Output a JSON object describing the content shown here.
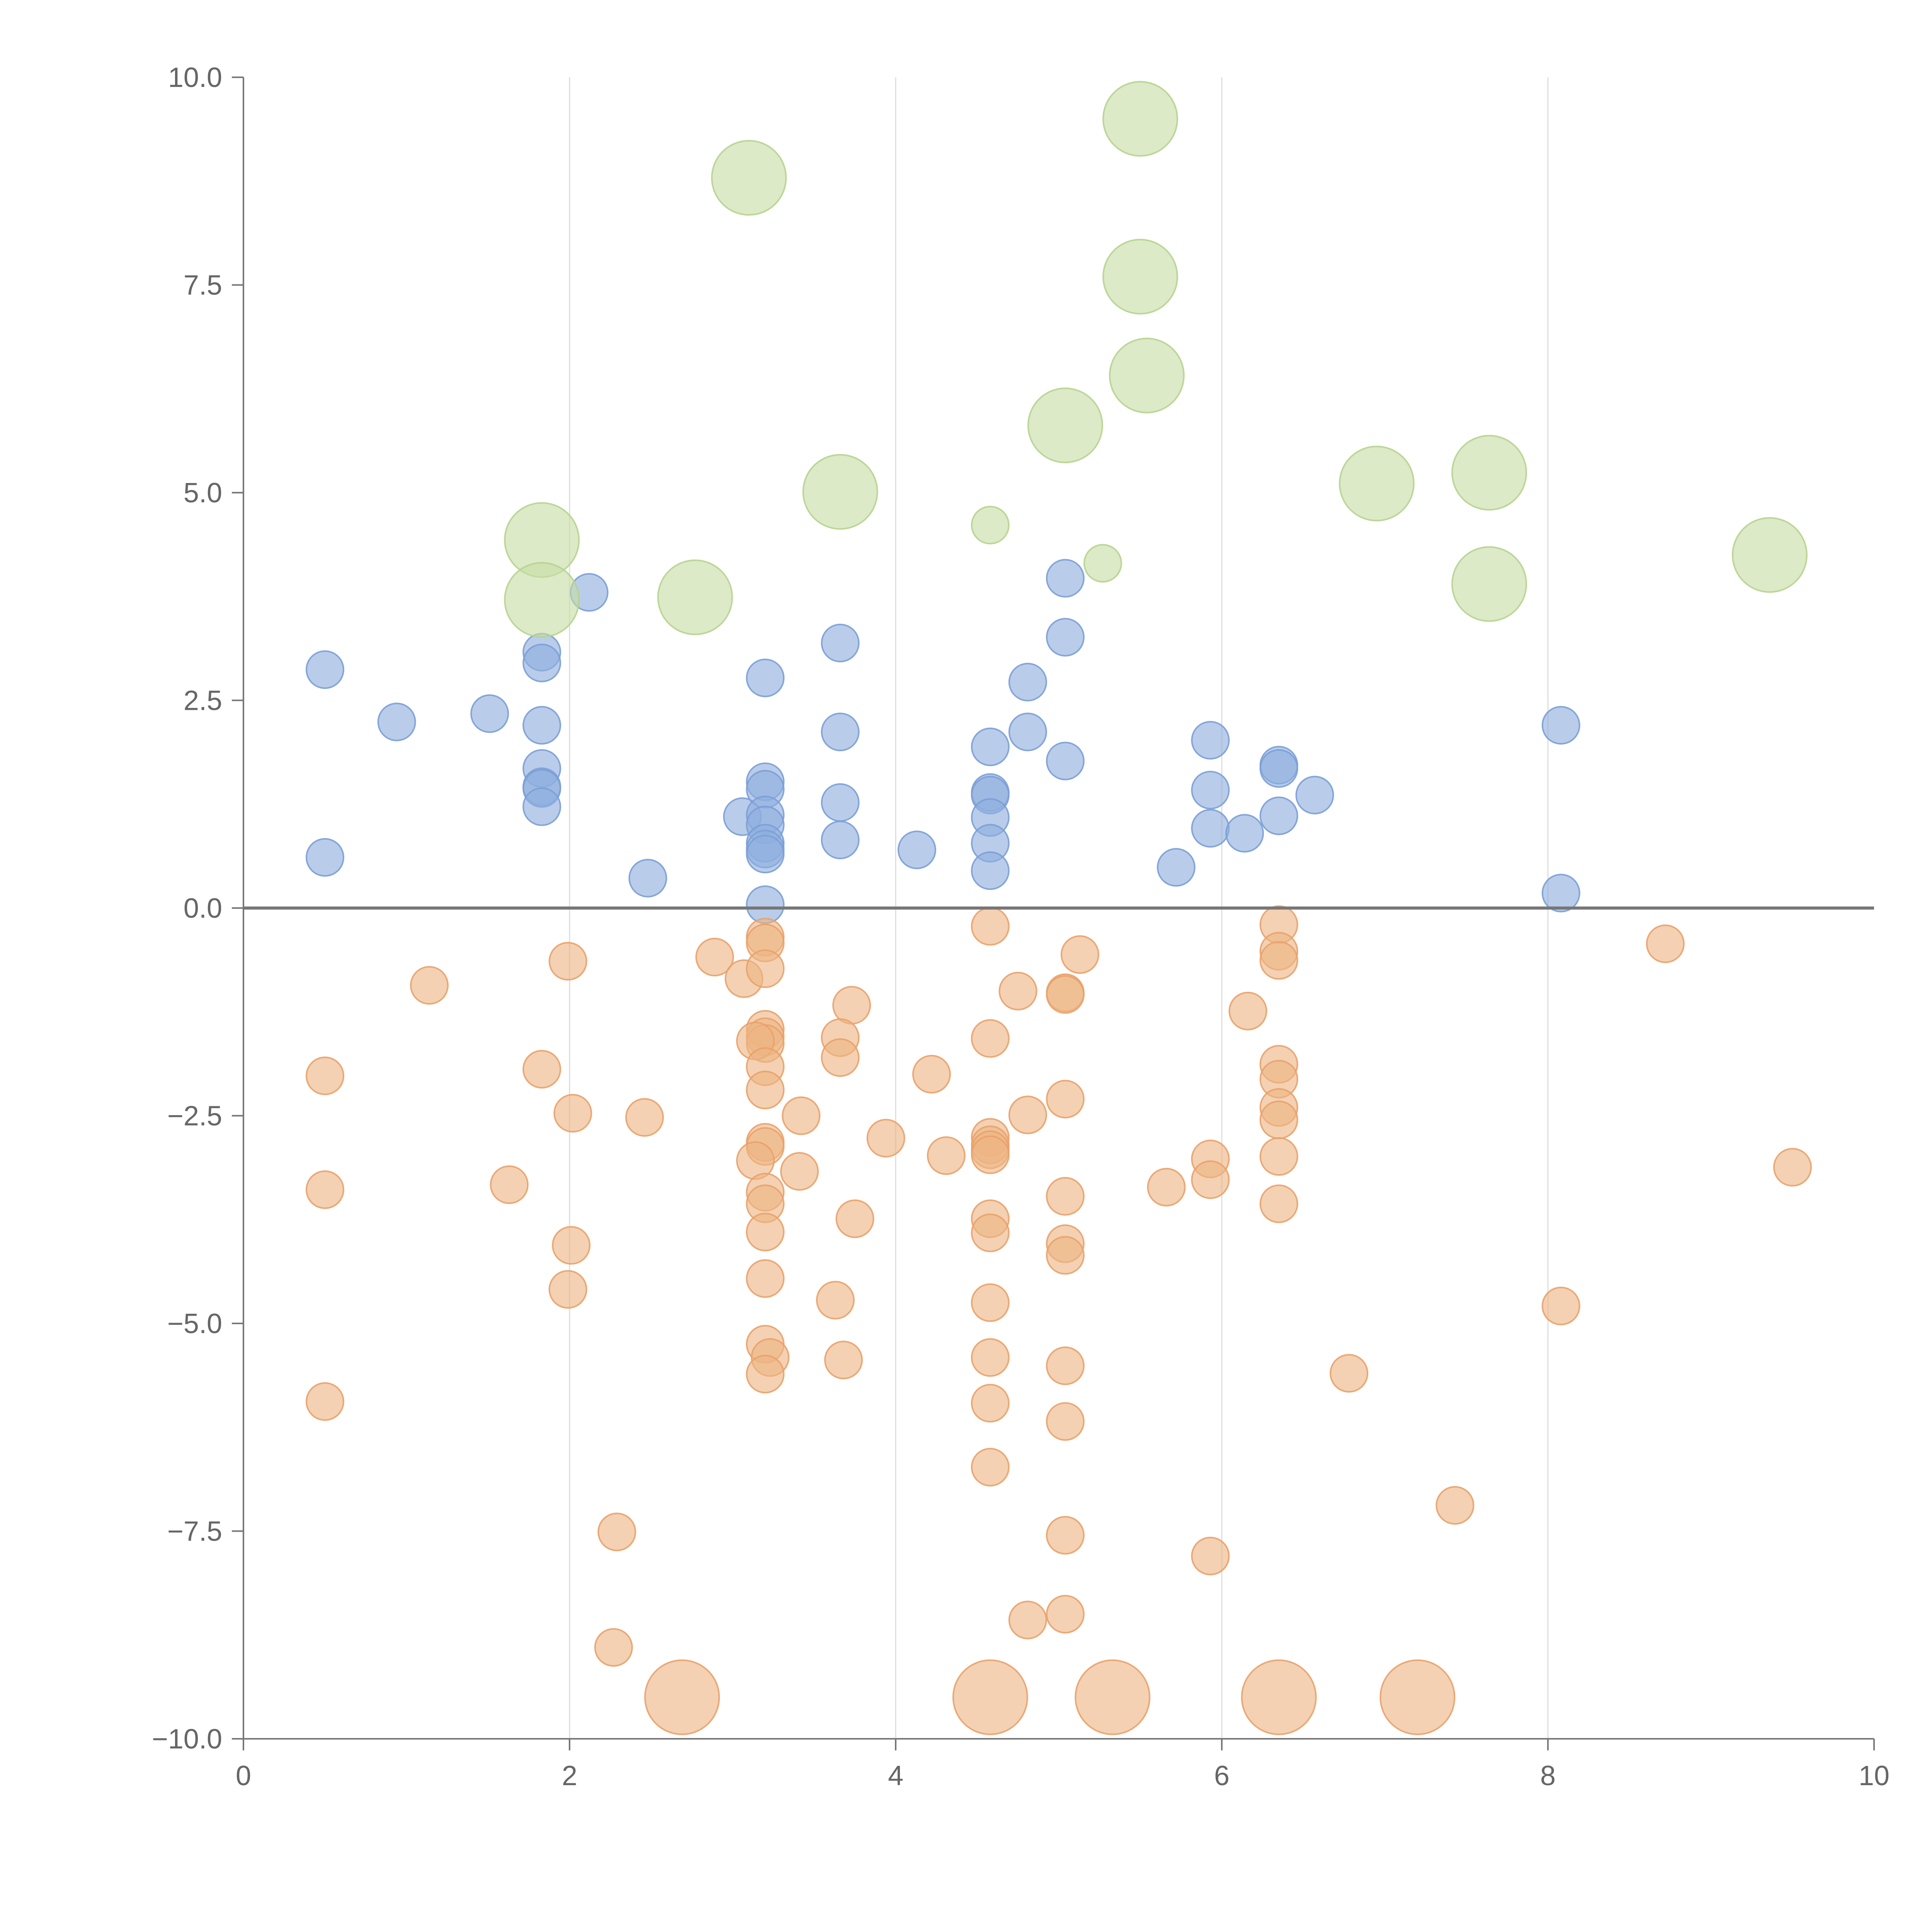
{
  "chart_data": {
    "type": "scatter",
    "title": "",
    "xlabel": "",
    "ylabel": "",
    "xlim": [
      0,
      10
    ],
    "ylim": [
      -10,
      10
    ],
    "x_ticks": [
      0,
      2,
      4,
      6,
      8,
      10
    ],
    "x_tick_labels": [
      "0",
      "2",
      "4",
      "6",
      "8",
      "10"
    ],
    "y_ticks": [
      10,
      7.5,
      5,
      2.5,
      0,
      -2.5,
      -5,
      -7.5,
      -10
    ],
    "y_tick_labels": [
      "10.0",
      "7.5",
      "5.0",
      "2.5",
      "0.0",
      "−2.5",
      "−5.0",
      "−7.5",
      "−10.0"
    ],
    "grid": "vertical",
    "reference_line_y": 0,
    "legend": "none",
    "series": [
      {
        "name": "positive",
        "color": "#8eaede",
        "edge_color": "#7b9fd6",
        "size_scale": 1.0,
        "points": [
          [
            0.5,
            2.87
          ],
          [
            0.5,
            0.61
          ],
          [
            0.94,
            2.24
          ],
          [
            1.51,
            2.34
          ],
          [
            1.83,
            3.08
          ],
          [
            1.83,
            2.95
          ],
          [
            1.83,
            2.2
          ],
          [
            1.83,
            1.68
          ],
          [
            1.83,
            1.46
          ],
          [
            1.83,
            1.44
          ],
          [
            1.83,
            1.22
          ],
          [
            2.12,
            3.8
          ],
          [
            2.48,
            0.36
          ],
          [
            3.06,
            1.1
          ],
          [
            3.2,
            2.77
          ],
          [
            3.2,
            1.52
          ],
          [
            3.2,
            1.43
          ],
          [
            3.2,
            1.12
          ],
          [
            3.2,
            1.0
          ],
          [
            3.2,
            0.78
          ],
          [
            3.2,
            0.71
          ],
          [
            3.2,
            0.65
          ],
          [
            3.2,
            0.04
          ],
          [
            3.66,
            3.19
          ],
          [
            3.66,
            2.12
          ],
          [
            3.66,
            1.27
          ],
          [
            3.66,
            0.82
          ],
          [
            4.13,
            0.7
          ],
          [
            4.58,
            1.94
          ],
          [
            4.58,
            1.39
          ],
          [
            4.58,
            1.36
          ],
          [
            4.58,
            1.09
          ],
          [
            4.58,
            0.78
          ],
          [
            4.58,
            0.45
          ],
          [
            4.81,
            2.72
          ],
          [
            4.81,
            2.12
          ],
          [
            5.04,
            3.97
          ],
          [
            5.04,
            3.26
          ],
          [
            5.04,
            1.77
          ],
          [
            5.72,
            0.49
          ],
          [
            5.93,
            2.02
          ],
          [
            5.93,
            1.42
          ],
          [
            5.93,
            0.96
          ],
          [
            6.14,
            0.9
          ],
          [
            6.35,
            1.72
          ],
          [
            6.35,
            1.68
          ],
          [
            6.35,
            1.11
          ],
          [
            6.57,
            1.36
          ],
          [
            8.08,
            2.2
          ],
          [
            8.08,
            0.18
          ]
        ]
      },
      {
        "name": "negative",
        "color": "#eeb483",
        "edge_color": "#e9a16a",
        "size_scale": 1.0,
        "points": [
          [
            0.5,
            -2.02
          ],
          [
            0.5,
            -3.39
          ],
          [
            0.5,
            -5.94
          ],
          [
            1.14,
            -0.93
          ],
          [
            1.63,
            -3.33
          ],
          [
            1.83,
            -1.94
          ],
          [
            1.99,
            -0.64
          ],
          [
            2.02,
            -2.47
          ],
          [
            2.01,
            -4.06
          ],
          [
            1.99,
            -4.59
          ],
          [
            2.46,
            -2.52
          ],
          [
            2.29,
            -7.51
          ],
          [
            2.27,
            -8.9
          ],
          [
            2.89,
            -0.59
          ],
          [
            3.07,
            -0.85
          ],
          [
            3.2,
            -0.35
          ],
          [
            3.2,
            -0.42
          ],
          [
            3.2,
            -0.73
          ],
          [
            3.2,
            -1.46
          ],
          [
            3.2,
            -1.55
          ],
          [
            3.2,
            -1.63
          ],
          [
            3.14,
            -1.6
          ],
          [
            3.2,
            -1.91
          ],
          [
            3.2,
            -2.19
          ],
          [
            3.2,
            -2.82
          ],
          [
            3.2,
            -2.87
          ],
          [
            3.14,
            -3.04
          ],
          [
            3.2,
            -3.42
          ],
          [
            3.2,
            -3.56
          ],
          [
            3.2,
            -3.9
          ],
          [
            3.2,
            -4.46
          ],
          [
            3.2,
            -5.25
          ],
          [
            3.23,
            -5.41
          ],
          [
            3.2,
            -5.61
          ],
          [
            3.42,
            -2.5
          ],
          [
            3.41,
            -3.17
          ],
          [
            3.73,
            -1.17
          ],
          [
            3.66,
            -1.56
          ],
          [
            3.66,
            -1.8
          ],
          [
            3.75,
            -3.74
          ],
          [
            3.63,
            -4.72
          ],
          [
            3.68,
            -5.44
          ],
          [
            3.94,
            -2.77
          ],
          [
            4.22,
            -2.0
          ],
          [
            4.31,
            -2.98
          ],
          [
            4.58,
            -0.22
          ],
          [
            4.58,
            -1.57
          ],
          [
            4.58,
            -2.76
          ],
          [
            4.58,
            -2.85
          ],
          [
            4.58,
            -2.91
          ],
          [
            4.58,
            -2.97
          ],
          [
            4.58,
            -3.74
          ],
          [
            4.58,
            -3.91
          ],
          [
            4.58,
            -4.75
          ],
          [
            4.58,
            -5.41
          ],
          [
            4.58,
            -5.96
          ],
          [
            4.58,
            -6.73
          ],
          [
            4.81,
            -8.57
          ],
          [
            4.75,
            -1.0
          ],
          [
            4.81,
            -2.49
          ],
          [
            5.04,
            -1.02
          ],
          [
            5.04,
            -1.04
          ],
          [
            5.04,
            -2.3
          ],
          [
            5.04,
            -3.47
          ],
          [
            5.04,
            -4.04
          ],
          [
            5.04,
            -4.18
          ],
          [
            5.04,
            -5.51
          ],
          [
            5.04,
            -6.18
          ],
          [
            5.04,
            -7.55
          ],
          [
            5.04,
            -8.5
          ],
          [
            5.13,
            -0.56
          ],
          [
            5.66,
            -3.36
          ],
          [
            5.93,
            -3.02
          ],
          [
            5.93,
            -3.27
          ],
          [
            5.93,
            -7.8
          ],
          [
            6.16,
            -1.24
          ],
          [
            6.35,
            -0.2
          ],
          [
            6.35,
            -0.52
          ],
          [
            6.35,
            -0.63
          ],
          [
            6.35,
            -1.88
          ],
          [
            6.35,
            -2.06
          ],
          [
            6.35,
            -2.4
          ],
          [
            6.35,
            -2.55
          ],
          [
            6.35,
            -2.99
          ],
          [
            6.35,
            -3.56
          ],
          [
            6.78,
            -5.6
          ],
          [
            7.43,
            -7.19
          ],
          [
            8.08,
            -4.79
          ],
          [
            8.72,
            -0.43
          ],
          [
            9.5,
            -3.12
          ]
        ]
      },
      {
        "name": "positive-large",
        "color": "#c6dda5",
        "edge_color": "#b7d38f",
        "size_scale": 2.0,
        "points": [
          [
            1.83,
            4.43
          ],
          [
            1.83,
            3.71
          ],
          [
            2.77,
            3.74
          ],
          [
            3.1,
            8.79
          ],
          [
            3.66,
            5.01
          ],
          [
            4.58,
            4.61
          ],
          [
            5.04,
            5.81
          ],
          [
            5.27,
            4.15
          ],
          [
            5.5,
            9.5
          ],
          [
            5.5,
            7.6
          ],
          [
            5.54,
            6.41
          ],
          [
            6.95,
            5.11
          ],
          [
            7.64,
            5.24
          ],
          [
            7.64,
            3.9
          ],
          [
            9.36,
            4.25
          ]
        ]
      },
      {
        "name": "negative-large",
        "color": "#eeb483",
        "edge_color": "#e9a16a",
        "size_scale": 2.0,
        "points": [
          [
            2.69,
            -9.5
          ],
          [
            4.58,
            -9.5
          ],
          [
            5.33,
            -9.5
          ],
          [
            6.35,
            -9.5
          ],
          [
            7.2,
            -9.5
          ]
        ]
      }
    ],
    "small_bubble_values": [
      4.61,
      4.15
    ]
  }
}
